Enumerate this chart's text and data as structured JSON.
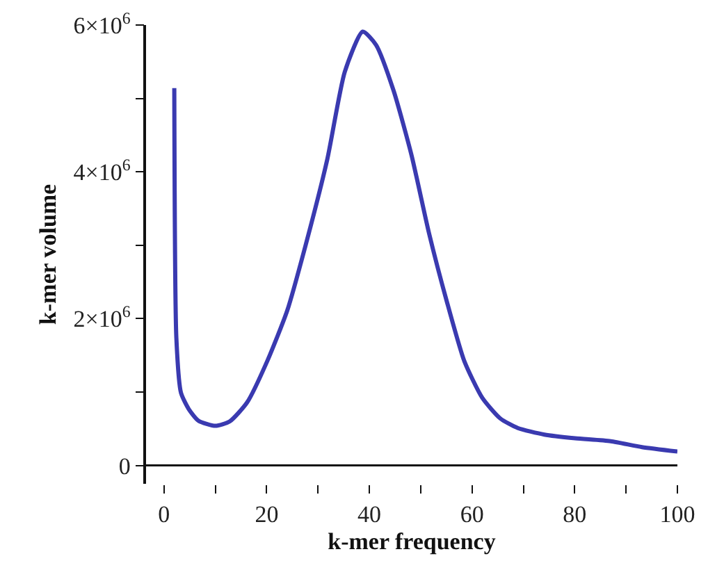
{
  "chart_data": {
    "type": "line",
    "xlabel": "k-mer frequency",
    "ylabel": "k-mer volume",
    "xlim": [
      -3.5,
      100
    ],
    "ylim": [
      -250000,
      6000000
    ],
    "xticks": [
      0,
      {
        "value": 10,
        "label": null
      },
      20,
      {
        "value": 30,
        "label": null
      },
      40,
      {
        "value": 50,
        "label": null
      },
      60,
      {
        "value": 70,
        "label": null
      },
      80,
      {
        "value": 90,
        "label": null
      },
      100
    ],
    "yticks": [
      0,
      {
        "value": 1000000,
        "label": null
      },
      {
        "value": 2000000,
        "label": "2×10$^{6}$"
      },
      {
        "value": 3000000,
        "label": null
      },
      {
        "value": 4000000,
        "label": "4×10$^{6}$"
      },
      {
        "value": 5000000,
        "label": null
      },
      {
        "value": 6000000,
        "label": "6×10$^{6}$"
      }
    ],
    "grid": false,
    "marker": "none",
    "line_style": "solid",
    "series": [
      {
        "color": "#3a3ab0",
        "x": [
          2,
          2.4,
          3.3,
          4.8,
          6.7,
          10,
          12.8,
          16.2,
          20.1,
          24,
          27.5,
          31.8,
          35.2,
          38.7,
          41.3,
          44.7,
          48.2,
          51.6,
          55.1,
          58.5,
          62,
          65.5,
          68.9,
          74.1,
          80.1,
          87,
          93.1,
          100
        ],
        "values": [
          5140000,
          1740000,
          990000,
          770000,
          610000,
          540000,
          600000,
          860000,
          1420000,
          2110000,
          2980000,
          4170000,
          5360000,
          5910000,
          5730000,
          5110000,
          4230000,
          3170000,
          2230000,
          1420000,
          920000,
          640000,
          510000,
          420000,
          370000,
          330000,
          250000,
          190000
        ]
      }
    ]
  }
}
